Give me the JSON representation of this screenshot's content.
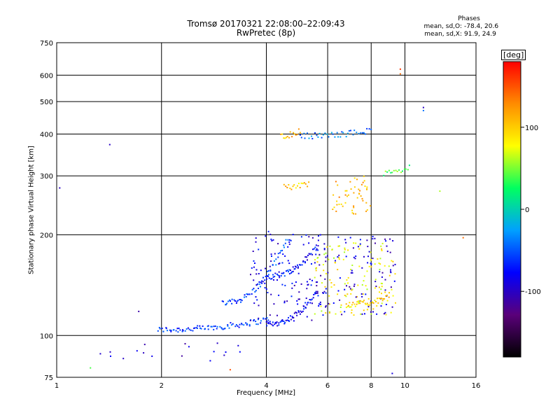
{
  "header": {
    "title_line1": "Tromsø 20170321 22:08:00–22:09:43",
    "title_line2": "RwPretec (8p)"
  },
  "phases": {
    "heading": "Phases",
    "rows": [
      {
        "label": "mean, sd,O:",
        "value": "-78.4, 20.6"
      },
      {
        "label": "mean, sd,X:",
        "value": "91.9, 24.9"
      }
    ]
  },
  "chart_data": {
    "type": "scatter",
    "xlabel": "Frequency [MHz]",
    "ylabel": "Stationary phase Virtual Height [km]",
    "x_scale": "log",
    "y_scale": "log",
    "xlim": [
      1,
      16
    ],
    "ylim": [
      75,
      750
    ],
    "x_ticks": [
      1,
      2,
      4,
      6,
      8,
      10,
      16
    ],
    "y_ticks": [
      75,
      100,
      200,
      300,
      400,
      500,
      600,
      750
    ],
    "grid": true,
    "colorbar": {
      "label": "[deg]",
      "ticks": [
        100,
        0,
        -100
      ],
      "range": [
        -180,
        180
      ],
      "colors": [
        "#000000",
        "#5a007a",
        "#0000ff",
        "#00a0ff",
        "#00ff60",
        "#ffff00",
        "#ff8c00",
        "#ff0000"
      ]
    },
    "series": [
      {
        "shape": "trace",
        "f_range": [
          1.95,
          4.1
        ],
        "h_range": [
          104,
          112
        ],
        "phase": -60,
        "count": 90
      },
      {
        "shape": "trace",
        "f_range": [
          4.0,
          5.6
        ],
        "h_range": [
          108,
          135
        ],
        "phase": -80,
        "count": 60
      },
      {
        "shape": "trace",
        "f_range": [
          3.0,
          4.6
        ],
        "h_range": [
          125,
          195
        ],
        "phase": -55,
        "count": 60
      },
      {
        "shape": "trace",
        "f_range": [
          4.0,
          5.6
        ],
        "h_range": [
          150,
          185
        ],
        "phase": -70,
        "count": 50
      },
      {
        "shape": "cloud",
        "f_range": [
          3.6,
          5.8
        ],
        "h_range": [
          110,
          205
        ],
        "phase": -85,
        "count": 120
      },
      {
        "shape": "cloud",
        "f_range": [
          5.5,
          9.4
        ],
        "h_range": [
          115,
          190
        ],
        "phase": 80,
        "count": 130
      },
      {
        "shape": "cloud",
        "f_range": [
          5.5,
          9.4
        ],
        "h_range": [
          115,
          200
        ],
        "phase": -90,
        "count": 110
      },
      {
        "shape": "cloud",
        "f_range": [
          6.2,
          8.0
        ],
        "h_range": [
          230,
          300
        ],
        "phase": 110,
        "count": 50
      },
      {
        "shape": "trace",
        "f_range": [
          6.8,
          9.0
        ],
        "h_range": [
          124,
          130
        ],
        "phase": 95,
        "count": 40
      },
      {
        "shape": "trace",
        "f_range": [
          5.0,
          8.0
        ],
        "h_range": [
          395,
          410
        ],
        "phase": -40,
        "count": 40
      },
      {
        "shape": "trace",
        "f_range": [
          4.4,
          5.0
        ],
        "h_range": [
          395,
          410
        ],
        "phase": 110,
        "count": 15
      },
      {
        "shape": "trace",
        "f_range": [
          4.5,
          5.3
        ],
        "h_range": [
          278,
          282
        ],
        "phase": 100,
        "count": 18
      },
      {
        "shape": "trace",
        "f_range": [
          8.7,
          10.3
        ],
        "h_range": [
          305,
          320
        ],
        "phase": 40,
        "count": 16
      },
      {
        "shape": "cloud",
        "f_range": [
          1.3,
          1.9
        ],
        "h_range": [
          84,
          95
        ],
        "phase": -100,
        "count": 8
      },
      {
        "shape": "cloud",
        "f_range": [
          2.0,
          3.4
        ],
        "h_range": [
          84,
          95
        ],
        "phase": -100,
        "count": 10
      }
    ],
    "points": [
      {
        "f": 1.02,
        "h": 276,
        "phase": -100
      },
      {
        "f": 1.42,
        "h": 372,
        "phase": -100
      },
      {
        "f": 1.72,
        "h": 118,
        "phase": -110
      },
      {
        "f": 9.7,
        "h": 625,
        "phase": 160
      },
      {
        "f": 9.7,
        "h": 605,
        "phase": 140
      },
      {
        "f": 11.3,
        "h": 480,
        "phase": -100
      },
      {
        "f": 11.3,
        "h": 470,
        "phase": -40
      },
      {
        "f": 12.6,
        "h": 270,
        "phase": 60
      },
      {
        "f": 14.7,
        "h": 196,
        "phase": 140
      },
      {
        "f": 3.15,
        "h": 79,
        "phase": 150
      },
      {
        "f": 9.2,
        "h": 77,
        "phase": -90
      },
      {
        "f": 1.25,
        "h": 80,
        "phase": 40
      }
    ]
  }
}
